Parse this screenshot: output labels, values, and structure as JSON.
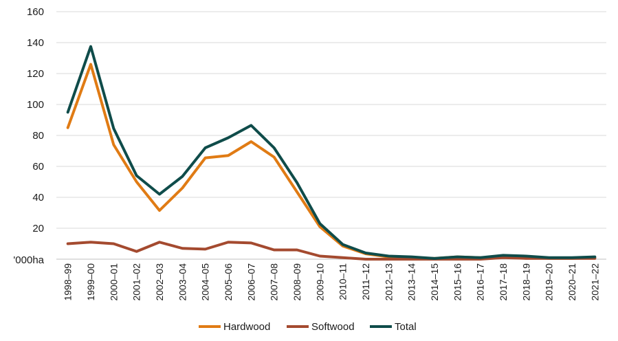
{
  "chart_data": {
    "type": "line",
    "title": "",
    "xlabel": "",
    "ylabel": "'000ha",
    "ylim": [
      0,
      160
    ],
    "yticks": [
      20,
      40,
      60,
      80,
      100,
      120,
      140,
      160
    ],
    "grid": true,
    "legend_position": "bottom",
    "categories": [
      "1998–99",
      "1999–00",
      "2000–01",
      "2001–02",
      "2002–03",
      "2003–04",
      "2004–05",
      "2005–06",
      "2006–07",
      "2007–08",
      "2008–09",
      "2009–10",
      "2010–11",
      "2011–12",
      "2012–13",
      "2013–14",
      "2014–15",
      "2015–16",
      "2016–17",
      "2017–18",
      "2018–19",
      "2019–20",
      "2020–21",
      "2021–22"
    ],
    "series": [
      {
        "name": "Hardwood",
        "color": "#E07B14",
        "values": [
          85,
          126,
          74,
          50,
          31.5,
          46,
          65.5,
          67,
          76,
          66,
          43.5,
          21,
          8.5,
          3.5,
          1.5,
          1,
          0.5,
          1.5,
          1,
          1.5,
          1.5,
          0.5,
          0.5,
          1
        ]
      },
      {
        "name": "Softwood",
        "color": "#A44A2F",
        "values": [
          10,
          11,
          10,
          5,
          11,
          7,
          6.5,
          11,
          10.5,
          6,
          6,
          2,
          1,
          0,
          0,
          0,
          0,
          0,
          0,
          1,
          0.5,
          0.5,
          0.5,
          0.5
        ]
      },
      {
        "name": "Total",
        "color": "#0F4C4A",
        "values": [
          95,
          137.5,
          84.5,
          54,
          42,
          53.5,
          72,
          78.5,
          86.5,
          72,
          49.5,
          23,
          9.5,
          4,
          2,
          1.5,
          0.5,
          1.5,
          1,
          2.5,
          2,
          1,
          1,
          1.5
        ]
      }
    ]
  }
}
